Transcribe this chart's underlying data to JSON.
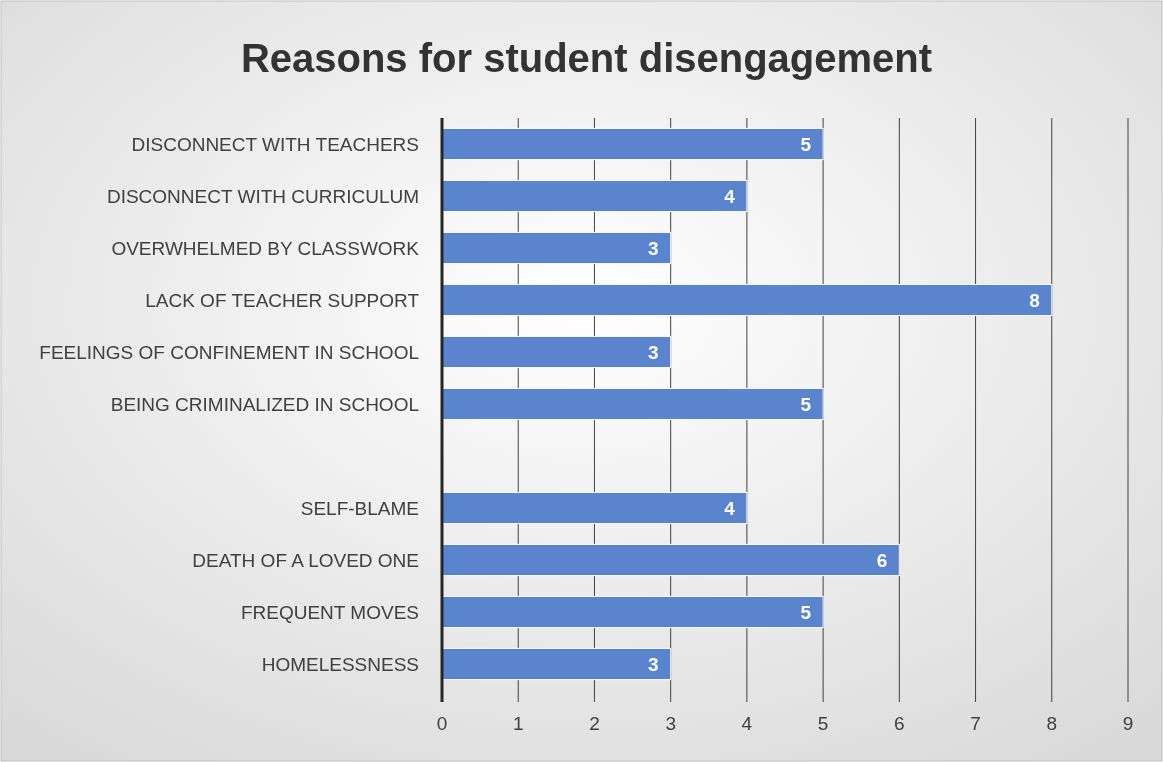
{
  "chart_data": {
    "type": "bar",
    "orientation": "horizontal",
    "title": "Reasons for student disengagement",
    "categories": [
      "DISCONNECT WITH TEACHERS",
      "DISCONNECT WITH CURRICULUM",
      "OVERWHELMED BY CLASSWORK",
      "LACK OF TEACHER SUPPORT",
      "FEELINGS OF CONFINEMENT IN SCHOOL",
      "BEING CRIMINALIZED IN SCHOOL",
      null,
      "SELF-BLAME",
      "DEATH OF A LOVED ONE",
      "FREQUENT MOVES",
      "HOMELESSNESS"
    ],
    "values": [
      5,
      4,
      3,
      8,
      3,
      5,
      null,
      4,
      6,
      5,
      3
    ],
    "color": "#5b84cf",
    "xlim": [
      0,
      9
    ],
    "xticks": [
      0,
      1,
      2,
      3,
      4,
      5,
      6,
      7,
      8,
      9
    ],
    "grid": "x",
    "data_labels": true
  }
}
